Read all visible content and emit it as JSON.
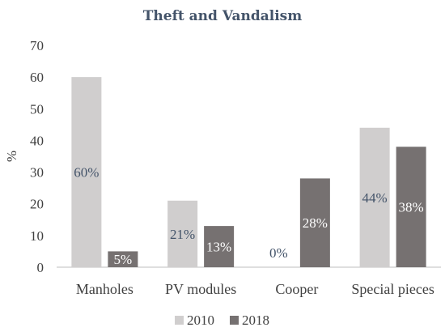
{
  "chart_data": {
    "type": "bar",
    "title": "Theft and Vandalism",
    "ylabel": "%",
    "xlabel": "",
    "ylim": [
      0,
      70
    ],
    "yticks": [
      0,
      10,
      20,
      30,
      40,
      50,
      60,
      70
    ],
    "categories": [
      "Manholes",
      "PV modules",
      "Cooper",
      "Special pieces"
    ],
    "series": [
      {
        "name": "2010",
        "values": [
          60,
          21,
          0,
          44
        ],
        "labels": [
          "60%",
          "21%",
          "0%",
          "44%"
        ],
        "color": "#d0cece"
      },
      {
        "name": "2018",
        "values": [
          5,
          13,
          28,
          38
        ],
        "labels": [
          "5%",
          "13%",
          "28%",
          "38%"
        ],
        "color": "#767171"
      }
    ],
    "grid": false,
    "legend": "bottom"
  }
}
